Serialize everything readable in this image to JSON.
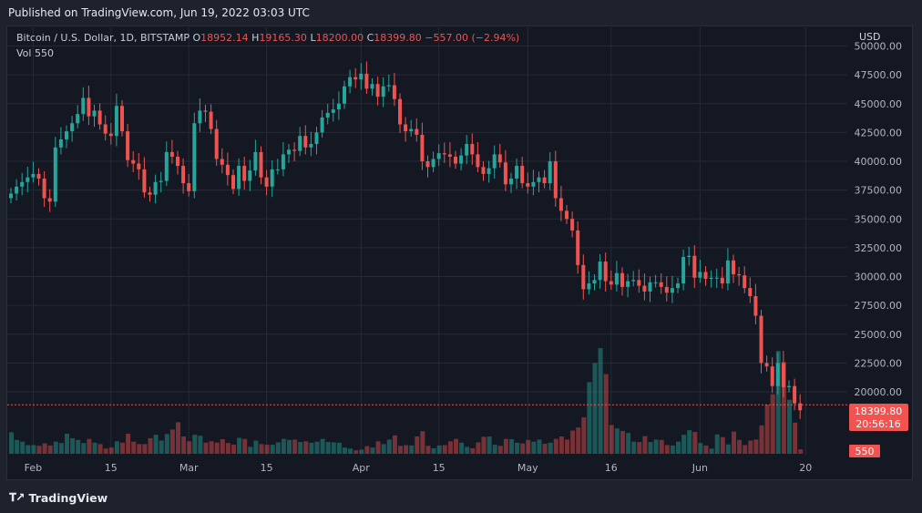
{
  "header": {
    "published": "Published on TradingView.com, Jun 19, 2022 03:03 UTC"
  },
  "legend": {
    "symbol": "Bitcoin / U.S. Dollar, 1D, BITSTAMP",
    "o_label": "O",
    "o": "18952.14",
    "h_label": "H",
    "h": "19165.30",
    "l_label": "L",
    "l": "18200.00",
    "c_label": "C",
    "c": "18399.80",
    "change": "−557.00 (−2.94%)",
    "vol_label": "Vol",
    "vol": "550"
  },
  "price_axis": {
    "currency": "USD",
    "last_price": "18399.80",
    "countdown": "20:56:16",
    "volume_badge": "550"
  },
  "footer": {
    "brand": "TradingView"
  },
  "colors": {
    "up": "#26a69a",
    "down": "#ef5350",
    "background": "#141823"
  },
  "chart_data": {
    "type": "candlestick",
    "title": "Bitcoin / U.S. Dollar, 1D, BITSTAMP",
    "ylim": [
      15000,
      50000
    ],
    "yticks": [
      20000,
      22500,
      25000,
      27500,
      30000,
      32500,
      35000,
      37500,
      40000,
      42500,
      45000,
      47500,
      50000
    ],
    "ytick_labels": [
      "20000.00",
      "22500.00",
      "25000.00",
      "27500.00",
      "30000.00",
      "32500.00",
      "35000.00",
      "37500.00",
      "40000.00",
      "42500.00",
      "45000.00",
      "47500.00",
      "50000.00"
    ],
    "xticks": [
      {
        "label": "Feb",
        "day": 4
      },
      {
        "label": "15",
        "day": 18
      },
      {
        "label": "Mar",
        "day": 32
      },
      {
        "label": "15",
        "day": 46
      },
      {
        "label": "Apr",
        "day": 63
      },
      {
        "label": "15",
        "day": 77
      },
      {
        "label": "May",
        "day": 93
      },
      {
        "label": "16",
        "day": 108
      },
      {
        "label": "Jun",
        "day": 124
      },
      {
        "label": "20",
        "day": 143
      }
    ],
    "closes": [
      37200,
      37800,
      38200,
      38600,
      38900,
      38500,
      36800,
      36500,
      41200,
      41900,
      42600,
      43300,
      44100,
      45500,
      43900,
      44400,
      43200,
      42400,
      42200,
      44800,
      42600,
      40100,
      39800,
      39300,
      37300,
      37100,
      38200,
      38300,
      40800,
      40400,
      39600,
      38100,
      37400,
      43300,
      44400,
      44300,
      42800,
      40200,
      39700,
      38800,
      37600,
      39600,
      38300,
      39200,
      40800,
      38600,
      37800,
      39300,
      39300,
      40600,
      41000,
      40900,
      42200,
      41200,
      41500,
      42500,
      43800,
      44200,
      44500,
      45000,
      46500,
      47300,
      47100,
      47600,
      46300,
      46700,
      45600,
      46500,
      46600,
      45400,
      43200,
      42600,
      42800,
      42300,
      40000,
      39500,
      40200,
      40700,
      40600,
      40400,
      39800,
      40500,
      41500,
      40600,
      39500,
      38900,
      39400,
      40600,
      39900,
      38000,
      38500,
      39600,
      38100,
      37800,
      38200,
      38600,
      38100,
      40000,
      36800,
      35700,
      35000,
      34000,
      31000,
      28900,
      29400,
      29700,
      31300,
      29600,
      29300,
      30300,
      29100,
      29600,
      29700,
      29200,
      28700,
      29500,
      29500,
      29100,
      28600,
      29000,
      29400,
      31700,
      31800,
      29900,
      30400,
      29800,
      29900,
      29900,
      29400,
      31400,
      30200,
      30100,
      29000,
      28300,
      26600,
      22500,
      22200,
      20500,
      22500,
      20400,
      20500,
      19000,
      18400
    ],
    "volumes": [
      6.2,
      4.0,
      3.5,
      2.5,
      2.5,
      2.3,
      3.0,
      2.4,
      3.5,
      3.1,
      5.8,
      4.5,
      4.0,
      3.1,
      4.3,
      3.2,
      2.8,
      1.5,
      1.8,
      3.6,
      3.2,
      5.8,
      3.5,
      2.8,
      2.8,
      4.5,
      5.5,
      3.8,
      5.7,
      7.0,
      9.1,
      5.0,
      3.6,
      5.5,
      5.2,
      3.2,
      3.6,
      3.2,
      4.2,
      3.1,
      2.6,
      4.6,
      4.3,
      2.0,
      3.8,
      2.8,
      2.6,
      2.6,
      3.3,
      4.3,
      4.0,
      4.1,
      3.4,
      3.6,
      3.2,
      3.5,
      4.3,
      3.4,
      3.3,
      3.2,
      1.8,
      1.5,
      1.0,
      1.2,
      2.2,
      1.8,
      3.6,
      2.8,
      4.1,
      5.3,
      2.3,
      2.5,
      2.4,
      5.0,
      6.5,
      2.3,
      1.6,
      2.4,
      2.5,
      3.6,
      4.3,
      3.2,
      2.0,
      1.6,
      3.3,
      4.9,
      5.0,
      2.6,
      2.3,
      4.3,
      4.2,
      3.2,
      3.0,
      4.0,
      3.5,
      4.1,
      2.9,
      3.2,
      4.3,
      5.0,
      4.1,
      6.7,
      7.6,
      10.5,
      20.7,
      26.2,
      30.5,
      23.0,
      8.3,
      7.3,
      6.6,
      6.0,
      3.5,
      3.4,
      5.1,
      3.4,
      4.1,
      4.0,
      2.5,
      2.4,
      3.5,
      5.5,
      6.8,
      6.3,
      3.1,
      2.4,
      1.5,
      5.6,
      4.8,
      2.7,
      6.4,
      4.0,
      2.5,
      3.8,
      4.1,
      8.2,
      14.2,
      17.2,
      29.7,
      26.5,
      15.6,
      9.0,
      1.3
    ]
  }
}
